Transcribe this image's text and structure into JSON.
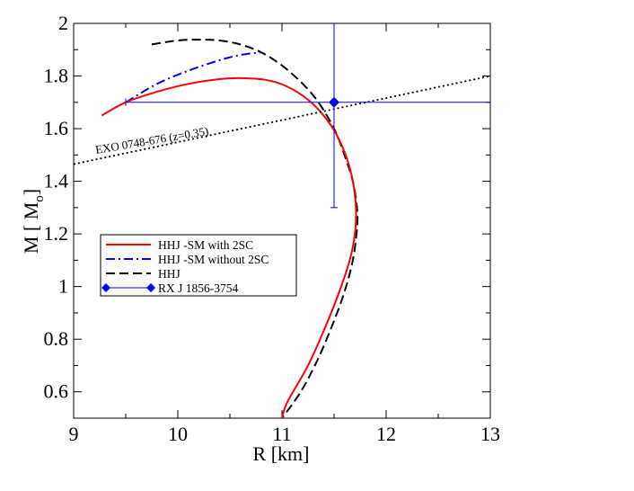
{
  "chart_data": {
    "type": "line",
    "title": "",
    "xlabel": "R [km]",
    "ylabel": "M [ M",
    "ylabel_sub": "o",
    "ylabel_end": "]",
    "xlim": [
      9,
      13
    ],
    "ylim": [
      0.5,
      2.0
    ],
    "x_ticks": [
      9,
      10,
      11,
      12,
      13
    ],
    "x_tick_labels": [
      "9",
      "10",
      "11",
      "12",
      "13"
    ],
    "y_ticks": [
      0.6,
      0.8,
      1.0,
      1.2,
      1.4,
      1.6,
      1.8,
      2.0
    ],
    "y_tick_labels": [
      "0.6",
      "0.8",
      "1",
      "1.2",
      "1.4",
      "1.6",
      "1.8",
      "2"
    ],
    "grid": false,
    "legend_position": "center-left",
    "series": [
      {
        "name": "HHJ -SM with 2SC",
        "color": "#ff0000",
        "style": "solid",
        "x": [
          9.27,
          9.5,
          9.8,
          10.1,
          10.4,
          10.6,
          10.85,
          11.05,
          11.25,
          11.4,
          11.52,
          11.62,
          11.68,
          11.71,
          11.7,
          11.65,
          11.55,
          11.42,
          11.25,
          11.05,
          11.0
        ],
        "y": [
          1.65,
          1.7,
          1.74,
          1.77,
          1.788,
          1.792,
          1.785,
          1.76,
          1.71,
          1.65,
          1.58,
          1.49,
          1.4,
          1.3,
          1.2,
          1.1,
          0.98,
          0.85,
          0.7,
          0.56,
          0.5
        ]
      },
      {
        "name": "HHJ -SM without 2SC",
        "color": "#0000ff",
        "style": "dash-dot",
        "x": [
          9.5,
          9.8,
          10.1,
          10.4,
          10.6,
          10.8
        ],
        "y": [
          1.7,
          1.77,
          1.82,
          1.86,
          1.88,
          1.89
        ]
      },
      {
        "name": "HHJ",
        "color": "#000000",
        "style": "dashed",
        "x": [
          9.75,
          10.0,
          10.2,
          10.4,
          10.6,
          10.8,
          11.0,
          11.2,
          11.35,
          11.5,
          11.6,
          11.68,
          11.72,
          11.72,
          11.68,
          11.6,
          11.48,
          11.34,
          11.18,
          11.0
        ],
        "y": [
          1.92,
          1.935,
          1.938,
          1.935,
          1.92,
          1.89,
          1.84,
          1.77,
          1.7,
          1.6,
          1.5,
          1.4,
          1.3,
          1.22,
          1.1,
          0.98,
          0.85,
          0.72,
          0.6,
          0.5
        ]
      }
    ],
    "observations": [
      {
        "name": "RX J 1856-3754",
        "color": "#0000ff",
        "x": 11.5,
        "y": 1.7,
        "x_err": [
          9.5,
          13.0
        ],
        "y_err": [
          1.3,
          2.0
        ]
      }
    ],
    "constraint_line": {
      "label": "EXO 0748-676 (z=0.35)",
      "color": "#000000",
      "style": "dotted",
      "x": [
        9.0,
        13.0
      ],
      "y": [
        1.465,
        1.8
      ]
    }
  }
}
